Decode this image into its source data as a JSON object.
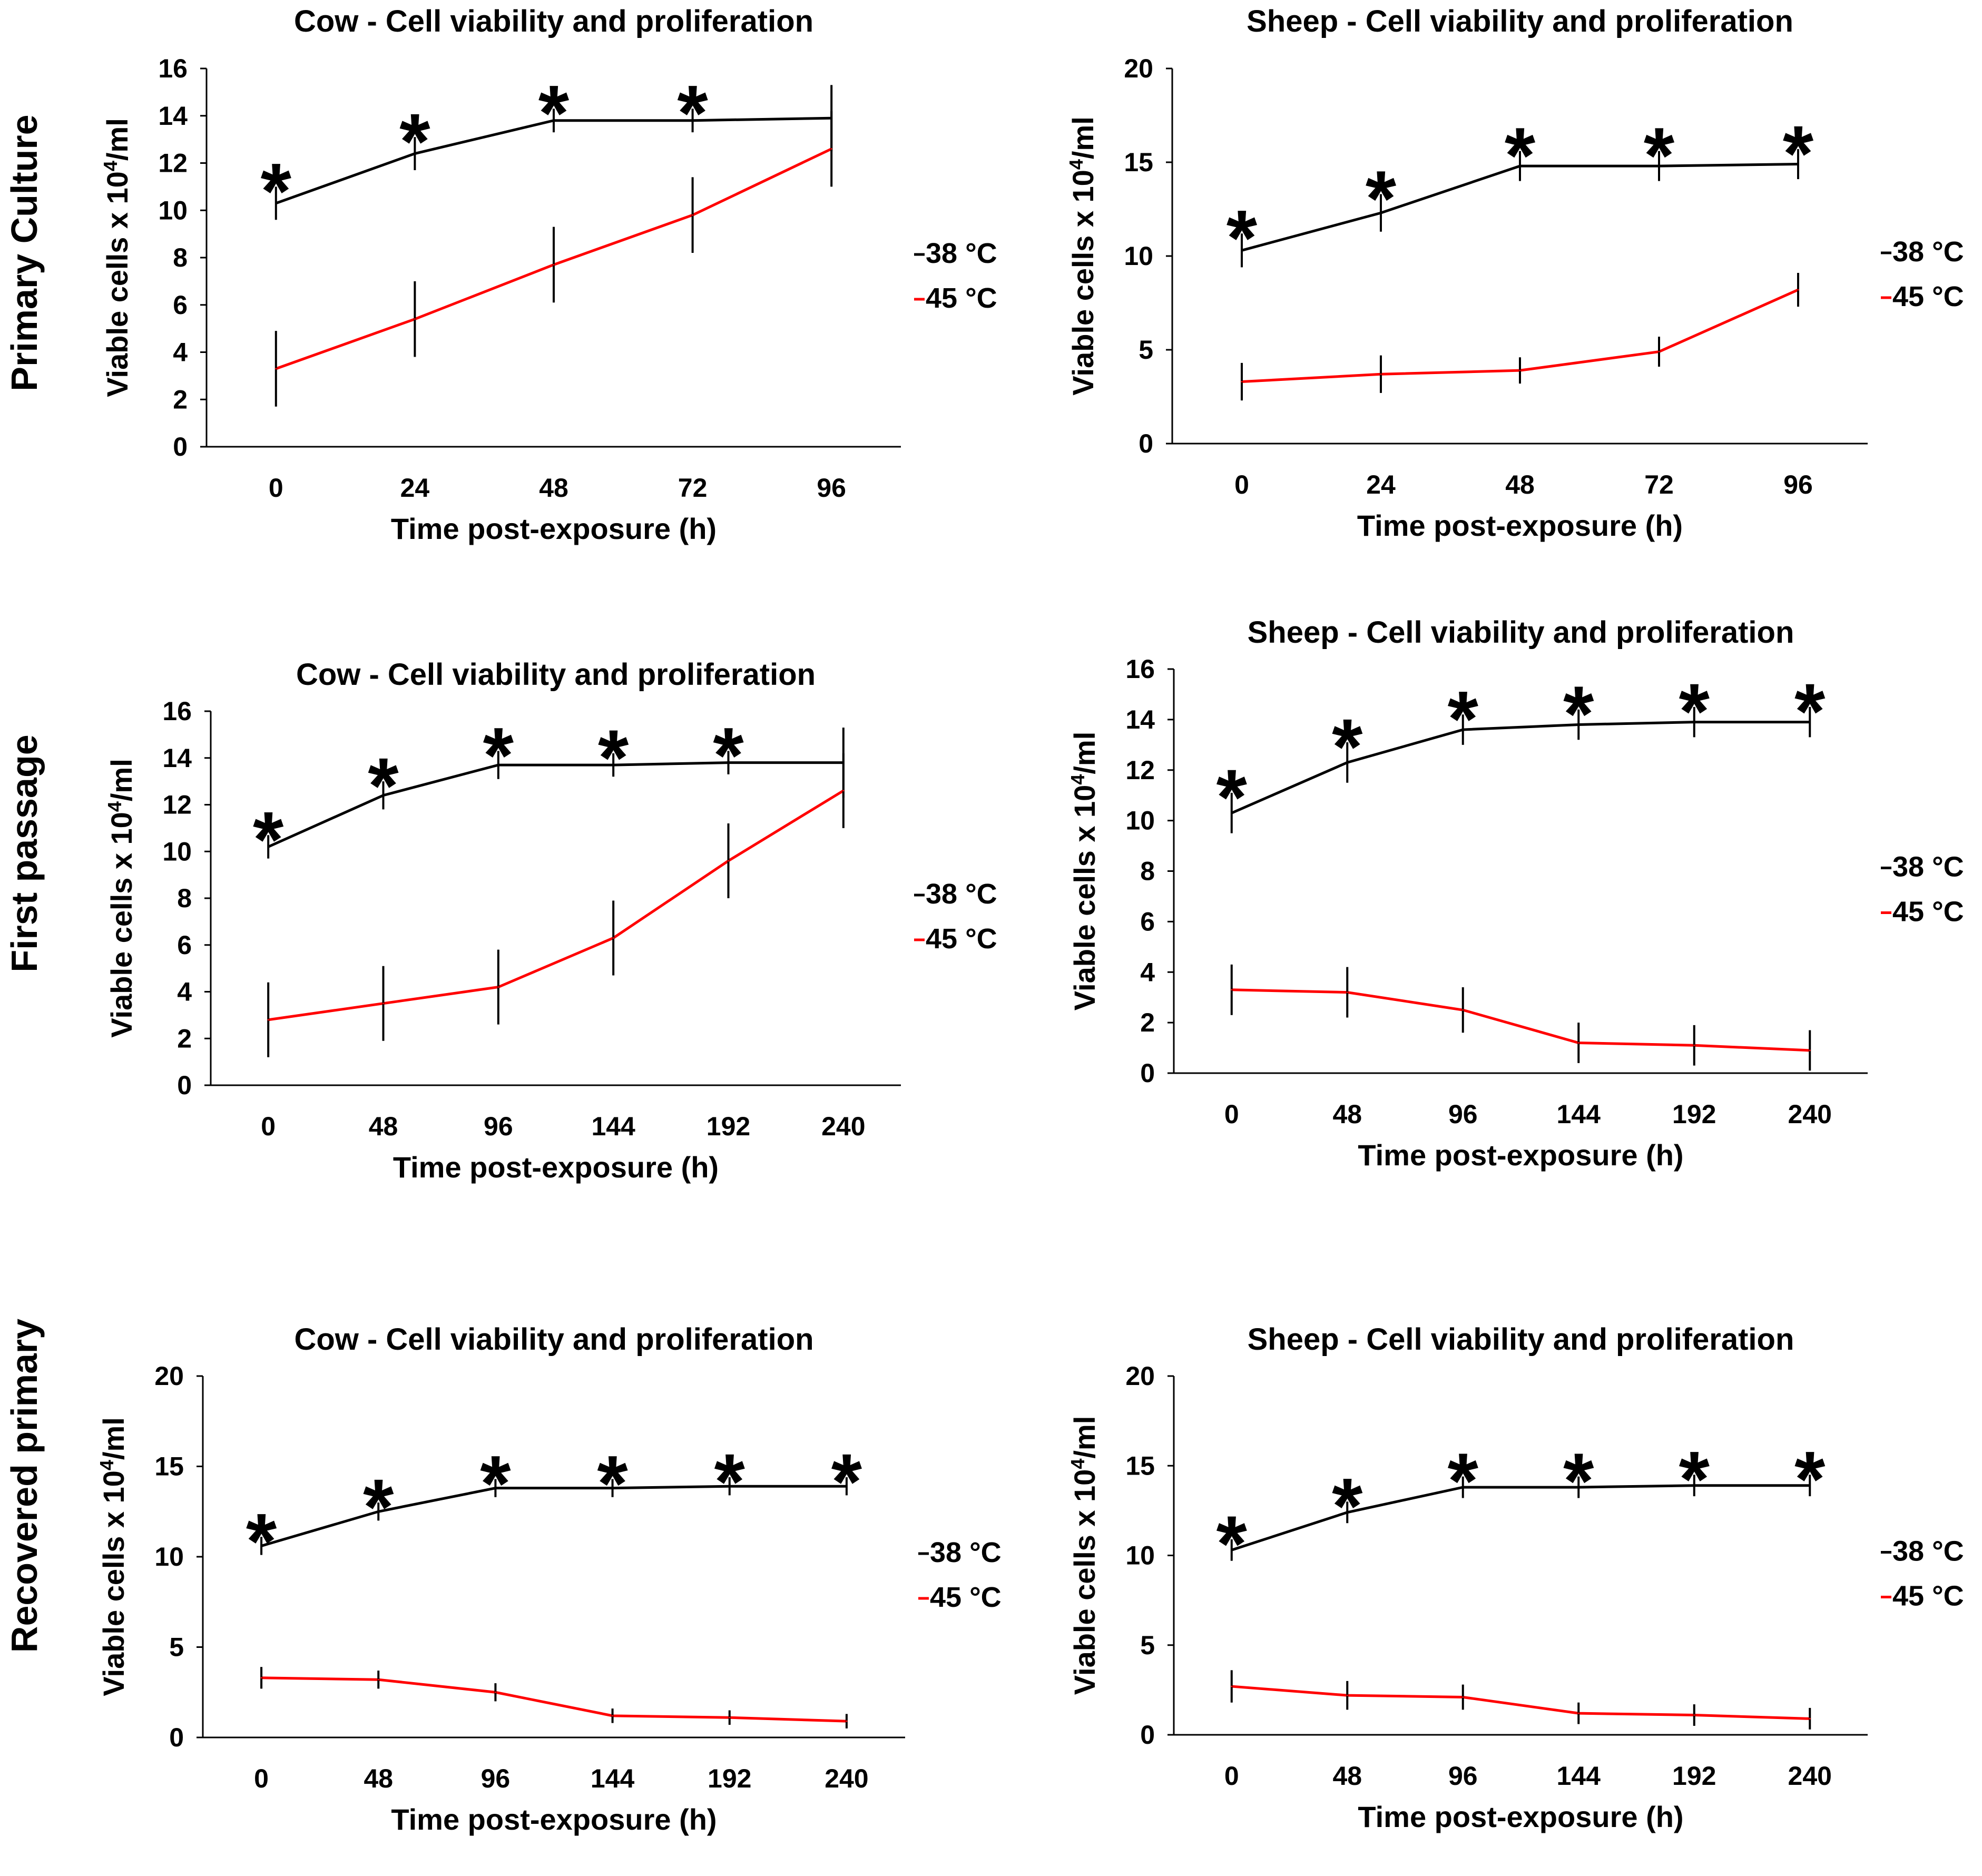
{
  "row_labels": [
    "Primary Culture",
    "First passage",
    "Recovered primary"
  ],
  "colors": {
    "series_38": "#000000",
    "series_45": "#ff0000"
  },
  "chart_data": [
    {
      "type": "line",
      "row": 0,
      "col": 0,
      "title": "Cow - Cell viability and proliferation",
      "xlabel": "Time post-exposure (h)",
      "ylabel": "Viable cells x 10^4/ml",
      "ylabel_parts": [
        "Viable cells x 10",
        "4",
        "/ml"
      ],
      "categories": [
        "0",
        "24",
        "48",
        "72",
        "96"
      ],
      "ylim": [
        0,
        16
      ],
      "yticks": [
        0,
        2,
        4,
        6,
        8,
        10,
        12,
        14,
        16
      ],
      "series": [
        {
          "name": "-38 °C",
          "values": [
            10.3,
            12.4,
            13.8,
            13.8,
            13.9
          ],
          "err": [
            0.7,
            0.7,
            0.5,
            0.5,
            1.4
          ]
        },
        {
          "name": "-45 °C",
          "values": [
            3.3,
            5.4,
            7.7,
            9.8,
            12.6
          ],
          "err": [
            1.6,
            1.6,
            1.6,
            1.6,
            1.6
          ]
        }
      ],
      "significance": [
        "*",
        "*",
        "*",
        "*"
      ]
    },
    {
      "type": "line",
      "row": 0,
      "col": 1,
      "title": "Sheep - Cell viability and proliferation",
      "xlabel": "Time post-exposure (h)",
      "ylabel": "Viable cells x 10^4/ml",
      "ylabel_parts": [
        "Viable cells x 10",
        "4",
        "/ml"
      ],
      "categories": [
        "0",
        "24",
        "48",
        "72",
        "96"
      ],
      "ylim": [
        0,
        20
      ],
      "yticks": [
        0,
        5,
        10,
        15,
        20
      ],
      "series": [
        {
          "name": "-38 °C",
          "values": [
            10.3,
            12.3,
            14.8,
            14.8,
            14.9
          ],
          "err": [
            0.9,
            1.0,
            0.8,
            0.8,
            0.8
          ]
        },
        {
          "name": "-45 °C",
          "values": [
            3.3,
            3.7,
            3.9,
            4.9,
            8.2
          ],
          "err": [
            1.0,
            1.0,
            0.7,
            0.8,
            0.9
          ]
        }
      ],
      "significance": [
        "*",
        "*",
        "*",
        "*",
        "*"
      ]
    },
    {
      "type": "line",
      "row": 1,
      "col": 0,
      "title": "Cow - Cell viability and proliferation",
      "xlabel": "Time post-exposure (h)",
      "ylabel": "Viable cells x 10^4/ml",
      "ylabel_parts": [
        "Viable cells x 10",
        "4",
        "/ml"
      ],
      "categories": [
        "0",
        "48",
        "96",
        "144",
        "192",
        "240"
      ],
      "ylim": [
        0,
        16
      ],
      "yticks": [
        0,
        2,
        4,
        6,
        8,
        10,
        12,
        14,
        16
      ],
      "series": [
        {
          "name": "-38 °C",
          "values": [
            10.2,
            12.4,
            13.7,
            13.7,
            13.8,
            13.8
          ],
          "err": [
            0.5,
            0.6,
            0.6,
            0.5,
            0.5,
            1.5
          ]
        },
        {
          "name": "-45 °C",
          "values": [
            2.8,
            3.5,
            4.2,
            6.3,
            9.6,
            12.6
          ],
          "err": [
            1.6,
            1.6,
            1.6,
            1.6,
            1.6,
            1.6
          ]
        }
      ],
      "significance": [
        "*",
        "*",
        "*",
        "*",
        "*"
      ]
    },
    {
      "type": "line",
      "row": 1,
      "col": 1,
      "title": "Sheep - Cell viability and proliferation",
      "xlabel": "Time post-exposure (h)",
      "ylabel": "Viable cells x 10^4/ml",
      "ylabel_parts": [
        "Viable cells x 10",
        "4",
        "/ml"
      ],
      "categories": [
        "0",
        "48",
        "96",
        "144",
        "192",
        "240"
      ],
      "ylim": [
        0,
        16
      ],
      "yticks": [
        0,
        2,
        4,
        6,
        8,
        10,
        12,
        14,
        16
      ],
      "series": [
        {
          "name": "-38 °C",
          "values": [
            10.3,
            12.3,
            13.6,
            13.8,
            13.9,
            13.9
          ],
          "err": [
            0.8,
            0.8,
            0.6,
            0.6,
            0.6,
            0.6
          ]
        },
        {
          "name": "-45 °C",
          "values": [
            3.3,
            3.2,
            2.5,
            1.2,
            1.1,
            0.9
          ],
          "err": [
            1.0,
            1.0,
            0.9,
            0.8,
            0.8,
            0.8
          ]
        }
      ],
      "significance": [
        "*",
        "*",
        "*",
        "*",
        "*",
        "*"
      ]
    },
    {
      "type": "line",
      "row": 2,
      "col": 0,
      "title": "Cow - Cell viability and proliferation",
      "xlabel": "Time post-exposure (h)",
      "ylabel": "Viable cells x 10^4/ml",
      "ylabel_parts": [
        "Viable cells x 10",
        "4",
        "/ml"
      ],
      "categories": [
        "0",
        "48",
        "96",
        "144",
        "192",
        "240"
      ],
      "ylim": [
        0,
        20
      ],
      "yticks": [
        0,
        5,
        10,
        15,
        20
      ],
      "series": [
        {
          "name": "-38 °C",
          "values": [
            10.6,
            12.5,
            13.8,
            13.8,
            13.9,
            13.9
          ],
          "err": [
            0.5,
            0.5,
            0.5,
            0.5,
            0.5,
            0.5
          ]
        },
        {
          "name": "-45 °C",
          "values": [
            3.3,
            3.2,
            2.5,
            1.2,
            1.1,
            0.9
          ],
          "err": [
            0.6,
            0.5,
            0.5,
            0.4,
            0.4,
            0.4
          ]
        }
      ],
      "significance": [
        "*",
        "*",
        "*",
        "*",
        "*",
        "*"
      ]
    },
    {
      "type": "line",
      "row": 2,
      "col": 1,
      "title": "Sheep - Cell viability and proliferation",
      "xlabel": "Time post-exposure (h)",
      "ylabel": "Viable cells x 10^4/ml",
      "ylabel_parts": [
        "Viable cells x 10",
        "4",
        "/ml"
      ],
      "categories": [
        "0",
        "48",
        "96",
        "144",
        "192",
        "240"
      ],
      "ylim": [
        0,
        20
      ],
      "yticks": [
        0,
        5,
        10,
        15,
        20
      ],
      "series": [
        {
          "name": "-38 °C",
          "values": [
            10.3,
            12.4,
            13.8,
            13.8,
            13.9,
            13.9
          ],
          "err": [
            0.6,
            0.6,
            0.6,
            0.6,
            0.6,
            0.6
          ]
        },
        {
          "name": "-45 °C",
          "values": [
            2.7,
            2.2,
            2.1,
            1.2,
            1.1,
            0.9
          ],
          "err": [
            0.9,
            0.8,
            0.7,
            0.6,
            0.6,
            0.6
          ]
        }
      ],
      "significance": [
        "*",
        "*",
        "*",
        "*",
        "*",
        "*"
      ]
    }
  ]
}
